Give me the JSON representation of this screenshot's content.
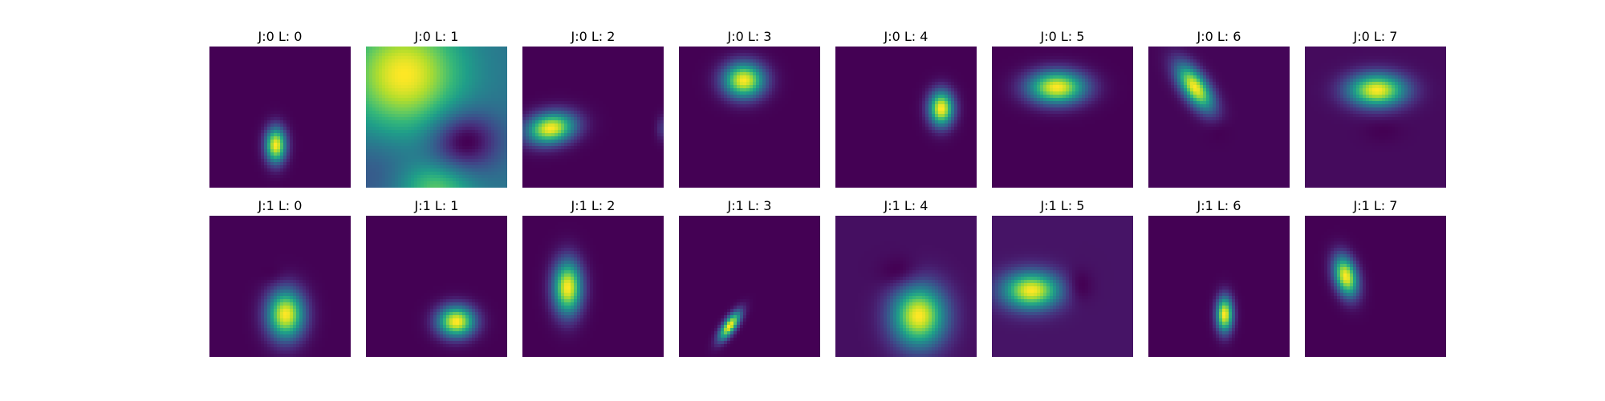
{
  "chart_data": {
    "type": "heatmap",
    "colormap": "viridis",
    "axes": "off",
    "grid": [
      2,
      8
    ],
    "panels": [
      {
        "title": "J:0 L: 0",
        "j": 0,
        "l": 0,
        "background": 0.0,
        "blobs": [
          {
            "x": 0.47,
            "y": 0.7,
            "sx": 0.05,
            "sy": 0.085,
            "rot": 0,
            "amp": 1.0
          }
        ]
      },
      {
        "title": "J:0 L: 1",
        "j": 0,
        "l": 1,
        "background": 0.45,
        "blobs": [
          {
            "x": 0.27,
            "y": 0.2,
            "sx": 0.28,
            "sy": 0.28,
            "rot": 0,
            "amp": 0.6
          },
          {
            "x": 0.5,
            "y": 1.0,
            "sx": 0.18,
            "sy": 0.12,
            "rot": 0,
            "amp": 0.35
          },
          {
            "x": 0.7,
            "y": 0.67,
            "sx": 0.17,
            "sy": 0.15,
            "rot": 0,
            "amp": -0.42
          },
          {
            "x": 0.05,
            "y": 0.9,
            "sx": 0.2,
            "sy": 0.2,
            "rot": 0,
            "amp": -0.12
          }
        ]
      },
      {
        "title": "J:0 L: 2",
        "j": 0,
        "l": 2,
        "background": 0.0,
        "blobs": [
          {
            "x": 0.2,
            "y": 0.58,
            "sx": 0.12,
            "sy": 0.075,
            "rot": -10,
            "amp": 1.0
          },
          {
            "x": 0.99,
            "y": 0.58,
            "sx": 0.03,
            "sy": 0.06,
            "rot": 0,
            "amp": 0.15
          }
        ]
      },
      {
        "title": "J:0 L: 3",
        "j": 0,
        "l": 3,
        "background": 0.0,
        "blobs": [
          {
            "x": 0.46,
            "y": 0.24,
            "sx": 0.1,
            "sy": 0.085,
            "rot": 0,
            "amp": 1.0
          }
        ]
      },
      {
        "title": "J:0 L: 4",
        "j": 0,
        "l": 4,
        "background": 0.0,
        "blobs": [
          {
            "x": 0.75,
            "y": 0.44,
            "sx": 0.06,
            "sy": 0.085,
            "rot": 0,
            "amp": 1.0
          }
        ]
      },
      {
        "title": "J:0 L: 5",
        "j": 0,
        "l": 5,
        "background": 0.02,
        "blobs": [
          {
            "x": 0.46,
            "y": 0.29,
            "sx": 0.14,
            "sy": 0.08,
            "rot": 0,
            "amp": 1.0
          }
        ]
      },
      {
        "title": "J:0 L: 6",
        "j": 0,
        "l": 6,
        "background": 0.02,
        "blobs": [
          {
            "x": 0.33,
            "y": 0.29,
            "sx": 0.06,
            "sy": 0.13,
            "rot": -35,
            "amp": 1.0
          },
          {
            "x": 0.5,
            "y": 0.58,
            "sx": 0.06,
            "sy": 0.06,
            "rot": 0,
            "amp": -0.03
          }
        ]
      },
      {
        "title": "J:0 L: 7",
        "j": 0,
        "l": 7,
        "background": 0.02,
        "blobs": [
          {
            "x": 0.51,
            "y": 0.31,
            "sx": 0.14,
            "sy": 0.08,
            "rot": 0,
            "amp": 1.0
          },
          {
            "x": 0.55,
            "y": 0.6,
            "sx": 0.1,
            "sy": 0.06,
            "rot": 0,
            "amp": -0.03
          }
        ]
      },
      {
        "title": "J:1 L: 0",
        "j": 1,
        "l": 0,
        "background": 0.03,
        "blobs": [
          {
            "x": 0.54,
            "y": 0.7,
            "sx": 0.09,
            "sy": 0.12,
            "rot": 0,
            "amp": 1.0
          },
          {
            "x": 0.46,
            "y": 0.43,
            "sx": 0.06,
            "sy": 0.05,
            "rot": 0,
            "amp": -0.03
          }
        ]
      },
      {
        "title": "J:1 L: 1",
        "j": 1,
        "l": 1,
        "background": 0.0,
        "blobs": [
          {
            "x": 0.64,
            "y": 0.75,
            "sx": 0.09,
            "sy": 0.075,
            "rot": 0,
            "amp": 1.0
          }
        ]
      },
      {
        "title": "J:1 L: 2",
        "j": 1,
        "l": 2,
        "background": 0.0,
        "blobs": [
          {
            "x": 0.32,
            "y": 0.51,
            "sx": 0.07,
            "sy": 0.13,
            "rot": 0,
            "amp": 1.0
          }
        ]
      },
      {
        "title": "J:1 L: 3",
        "j": 1,
        "l": 3,
        "background": 0.0,
        "blobs": [
          {
            "x": 0.36,
            "y": 0.78,
            "sx": 0.03,
            "sy": 0.08,
            "rot": 35,
            "amp": 1.0
          }
        ]
      },
      {
        "title": "J:1 L: 4",
        "j": 1,
        "l": 4,
        "background": 0.1,
        "blobs": [
          {
            "x": 0.59,
            "y": 0.71,
            "sx": 0.13,
            "sy": 0.15,
            "rot": 0,
            "amp": 0.9
          },
          {
            "x": 0.47,
            "y": 0.42,
            "sx": 0.1,
            "sy": 0.08,
            "rot": 0,
            "amp": -0.09
          }
        ]
      },
      {
        "title": "J:1 L: 5",
        "j": 1,
        "l": 5,
        "background": 0.1,
        "blobs": [
          {
            "x": 0.28,
            "y": 0.53,
            "sx": 0.14,
            "sy": 0.09,
            "rot": 0,
            "amp": 0.9
          },
          {
            "x": 0.61,
            "y": 0.5,
            "sx": 0.07,
            "sy": 0.08,
            "rot": 0,
            "amp": -0.09
          }
        ]
      },
      {
        "title": "J:1 L: 6",
        "j": 1,
        "l": 6,
        "background": 0.0,
        "blobs": [
          {
            "x": 0.54,
            "y": 0.7,
            "sx": 0.04,
            "sy": 0.085,
            "rot": 0,
            "amp": 1.0
          }
        ]
      },
      {
        "title": "J:1 L: 7",
        "j": 1,
        "l": 7,
        "background": 0.0,
        "blobs": [
          {
            "x": 0.29,
            "y": 0.43,
            "sx": 0.055,
            "sy": 0.1,
            "rot": -15,
            "amp": 1.0
          }
        ]
      }
    ]
  }
}
